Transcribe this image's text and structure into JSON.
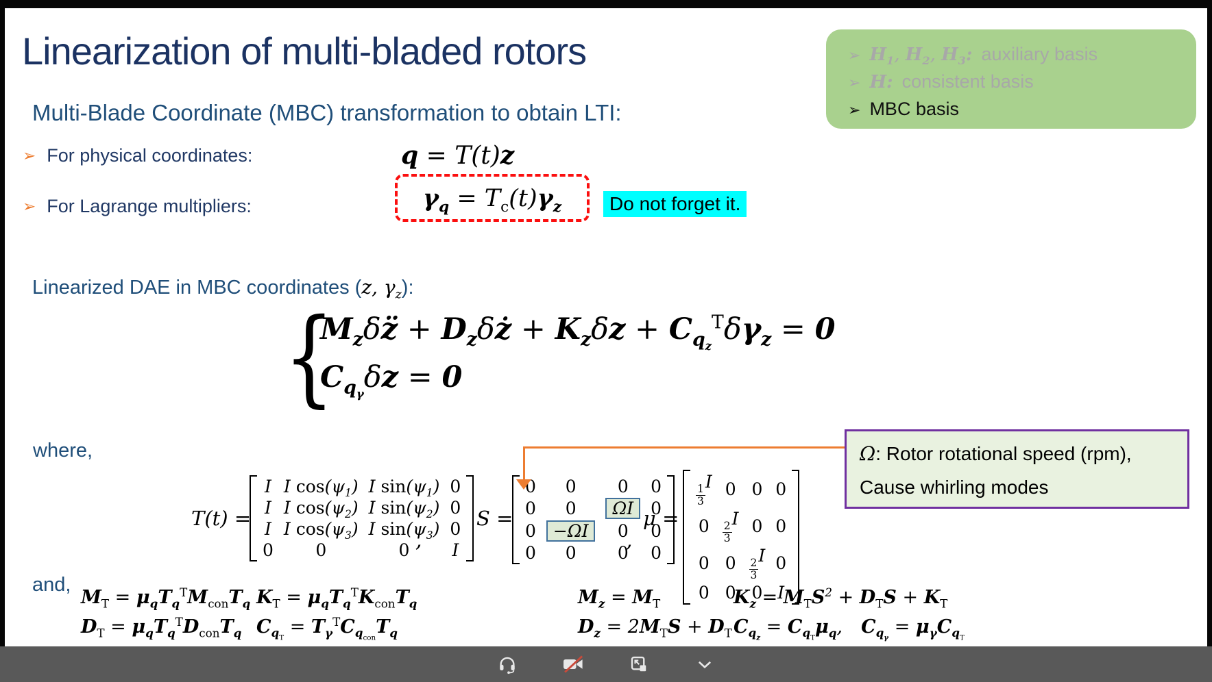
{
  "colors": {
    "title_navy": "#1b3262",
    "body_blue": "#1f4e79",
    "bullet_orange": "#ed7d31",
    "highlight_cyan": "#00ffff",
    "dashed_red": "#fb0f0f",
    "basis_box_green": "#a9d18e",
    "dimmed_gray": "#a8a8a8",
    "note_box_green": "#e9f2e0",
    "note_box_purple": "#7030a0",
    "matrix_cell_highlight_border": "#41719c",
    "matrix_cell_highlight_fill": "#dfead6",
    "connector_orange": "#ed7d31",
    "toolbar_gray": "#595959"
  },
  "slide": {
    "title": "Linearization of multi-bladed rotors",
    "subtitle": "Multi-Blade Coordinate (MBC) transformation to obtain LTI:",
    "bullet_glyph": "➢",
    "bullets": [
      {
        "label": "For physical coordinates:",
        "equation": "*{q} = T(t)*{z}"
      },
      {
        "label": "For Lagrange multipliers:",
        "equation": "*{γ}_{*{q}} = T_{~{c}}(t)*{γ}_{*{z}}"
      }
    ],
    "reminder_note": "Do not forget it.",
    "dae_heading": {
      "pre": "Linearized DAE in MBC coordinates (",
      "math": "z, γ_{z}",
      "post": "):"
    },
    "dae_system": [
      "*{M}_{*{z}}δ*{z̈} + *{D}_{*{z}}δ*{ż} + *{K}_{*{z}}δ*{z} + *{C}_{*{q}_{*{z}}}^{~{T}}δ*{γ}_{*{z}} = *{0}",
      "*{C}_{*{q}_{*{γ}}}δ*{z} = *{0}"
    ],
    "where_label": "where,",
    "and_label": "and,",
    "matrices": {
      "T": {
        "label": "T(t) =",
        "cells": [
          [
            "I",
            "I ~{cos}(ψ_{1})",
            "I ~{sin}(ψ_{1})",
            "~{0}"
          ],
          [
            "I",
            "I ~{cos}(ψ_{2})",
            "I ~{sin}(ψ_{2})",
            "~{0}"
          ],
          [
            "I",
            "I ~{cos}(ψ_{3})",
            "I ~{sin}(ψ_{3})",
            "~{0}"
          ],
          [
            "~{0}",
            "~{0}",
            "~{0}",
            "I"
          ]
        ]
      },
      "separator1": ",",
      "S": {
        "label": "S =",
        "cells": [
          [
            "~{0}",
            "~{0}",
            "~{0}",
            "~{0}"
          ],
          [
            "~{0}",
            "~{0}",
            "ΩI",
            "~{0}"
          ],
          [
            "~{0}",
            "−ΩI",
            "~{0}",
            "~{0}"
          ],
          [
            "~{0}",
            "~{0}",
            "~{0}",
            "~{0}"
          ]
        ],
        "highlight": [
          [
            1,
            2
          ],
          [
            2,
            1
          ]
        ]
      },
      "separator2": ",",
      "mu": {
        "label": "μ =",
        "cells": [
          [
            "#{1|3}I",
            "~{0}",
            "~{0}",
            "~{0}"
          ],
          [
            "~{0}",
            "#{2|3}I",
            "~{0}",
            "~{0}"
          ],
          [
            "~{0}",
            "~{0}",
            "#{2|3}I",
            "~{0}"
          ],
          [
            "~{0}",
            "~{0}",
            "~{0}",
            "I"
          ]
        ]
      }
    },
    "speed_note": {
      "symbol": "Ω",
      "line1": ": Rotor rotational speed (rpm),",
      "line2": "Cause whirling modes"
    },
    "basis_box": {
      "items": [
        {
          "math": "*{H}_{*{1}}, *{H}_{*{2}}, *{H}_{*{3}}*{:}",
          "text": "auxiliary basis",
          "dimmed": true
        },
        {
          "math": "*{H}*{:}",
          "text": "consistent basis",
          "dimmed": true
        },
        {
          "math": "",
          "text": "MBC basis",
          "dimmed": false
        }
      ]
    },
    "definitions": [
      [
        "*{M}_{~{T}} = *{μ}_{*{q}}*{T}_{*{q}}^{~{T}}*{M}_{~{con}}*{T}_{*{q}}",
        "*{D}_{~{T}} = *{μ}_{*{q}}*{T}_{*{q}}^{~{T}}*{D}_{~{con}}*{T}_{*{q}}"
      ],
      [
        "*{K}_{~{T}} = *{μ}_{*{q}}*{T}_{*{q}}^{~{T}}*{K}_{~{con}}*{T}_{*{q}}",
        "*{C}_{*{q}_{~{T}}} = *{T}_{*{γ}}^{~{T}}*{C}_{*{q}_{~{con}}}*{T}_{*{q}}"
      ],
      [
        "*{M}_{*{z}} = *{M}_{~{T}}",
        "*{D}_{*{z}} = 2*{M}_{~{T}}*{S} + *{D}_{~{T}}"
      ],
      [
        "*{K}_{*{z}} = *{M}_{~{T}}*{S}^{2} + *{D}_{~{T}}*{S} + *{K}_{~{T}}",
        "*{C}_{*{q}_{*{z}}} = *{C}_{*{q}_{~{T}}}*{μ}_{*{q}},  *{C}_{*{q}_{*{γ}}} = *{μ}_{*{γ}}*{C}_{*{q}_{~{T}}}"
      ]
    ]
  },
  "toolbar": {
    "icons": [
      {
        "name": "headset"
      },
      {
        "name": "camera-off"
      },
      {
        "name": "pop-out"
      },
      {
        "name": "chevron-down"
      }
    ]
  }
}
